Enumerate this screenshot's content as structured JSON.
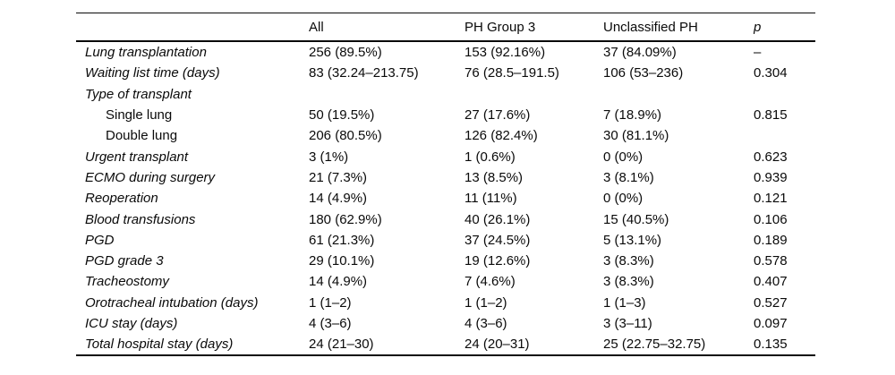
{
  "table": {
    "columns": [
      "",
      "All",
      "PH Group 3",
      "Unclassified PH",
      "p"
    ],
    "rows": [
      {
        "label": "Lung transplantation",
        "indent": false,
        "values": [
          "256 (89.5%)",
          "153 (92.16%)",
          "37 (84.09%)",
          "–"
        ]
      },
      {
        "label": "Waiting list time (days)",
        "indent": false,
        "values": [
          "83 (32.24–213.75)",
          "76 (28.5–191.5)",
          "106 (53–236)",
          "0.304"
        ]
      },
      {
        "label": "Type of transplant",
        "indent": false,
        "values": [
          "",
          "",
          "",
          ""
        ]
      },
      {
        "label": "Single lung",
        "indent": true,
        "values": [
          "50 (19.5%)",
          "27 (17.6%)",
          "7 (18.9%)",
          "0.815"
        ]
      },
      {
        "label": "Double lung",
        "indent": true,
        "values": [
          "206 (80.5%)",
          "126 (82.4%)",
          "30 (81.1%)",
          ""
        ]
      },
      {
        "label": "Urgent transplant",
        "indent": false,
        "values": [
          "3 (1%)",
          "1 (0.6%)",
          "0 (0%)",
          "0.623"
        ]
      },
      {
        "label": "ECMO during surgery",
        "indent": false,
        "values": [
          "21 (7.3%)",
          "13 (8.5%)",
          "3 (8.1%)",
          "0.939"
        ]
      },
      {
        "label": "Reoperation",
        "indent": false,
        "values": [
          "14 (4.9%)",
          "11 (11%)",
          "0 (0%)",
          "0.121"
        ]
      },
      {
        "label": "Blood transfusions",
        "indent": false,
        "values": [
          "180 (62.9%)",
          "40 (26.1%)",
          "15 (40.5%)",
          "0.106"
        ]
      },
      {
        "label": "PGD",
        "indent": false,
        "values": [
          "61 (21.3%)",
          "37 (24.5%)",
          "5 (13.1%)",
          "0.189"
        ]
      },
      {
        "label": "PGD grade 3",
        "indent": false,
        "values": [
          "29 (10.1%)",
          "19 (12.6%)",
          "3 (8.3%)",
          "0.578"
        ]
      },
      {
        "label": "Tracheostomy",
        "indent": false,
        "values": [
          "14 (4.9%)",
          "7 (4.6%)",
          "3 (8.3%)",
          "0.407"
        ]
      },
      {
        "label": "Orotracheal intubation (days)",
        "indent": false,
        "values": [
          "1 (1–2)",
          "1 (1–2)",
          "1 (1–3)",
          "0.527"
        ]
      },
      {
        "label": "ICU stay (days)",
        "indent": false,
        "values": [
          "4 (3–6)",
          "4 (3–6)",
          "3 (3–11)",
          "0.097"
        ]
      },
      {
        "label": "Total hospital stay (days)",
        "indent": false,
        "values": [
          "24 (21–30)",
          "24 (20–31)",
          "25 (22.75–32.75)",
          "0.135"
        ]
      }
    ]
  }
}
